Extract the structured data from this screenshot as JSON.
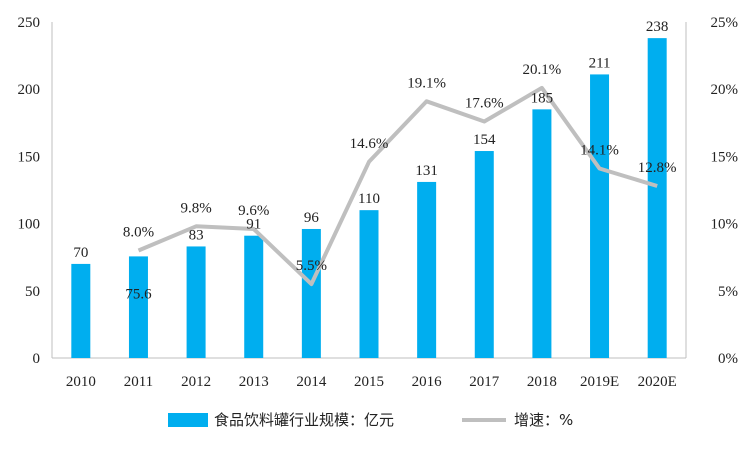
{
  "chart_data": {
    "type": "bar",
    "categories": [
      "2010",
      "2011",
      "2012",
      "2013",
      "2014",
      "2015",
      "2016",
      "2017",
      "2018",
      "2019E",
      "2020E"
    ],
    "series": [
      {
        "name": "食品饮料罐行业规模：亿元",
        "type": "bar",
        "axis": "left",
        "color": "#00AEEF",
        "values": [
          70,
          75.6,
          83,
          91,
          96,
          110,
          131,
          154,
          185,
          211,
          238
        ],
        "labels": [
          "70",
          "75.6",
          "83",
          "91",
          "96",
          "110",
          "131",
          "154",
          "185",
          "211",
          "238"
        ]
      },
      {
        "name": "增速：%",
        "type": "line",
        "axis": "right",
        "color": "#BFBFBF",
        "values": [
          null,
          8.0,
          9.8,
          9.6,
          5.5,
          14.6,
          19.1,
          17.6,
          20.1,
          14.1,
          12.8
        ],
        "labels": [
          null,
          "8.0%",
          "9.8%",
          "9.6%",
          "5.5%",
          "14.6%",
          "19.1%",
          "17.6%",
          "20.1%",
          "14.1%",
          "12.8%"
        ]
      }
    ],
    "y_left": {
      "min": 0,
      "max": 250,
      "ticks": [
        "0",
        "50",
        "100",
        "150",
        "200",
        "250"
      ]
    },
    "y_right": {
      "min": 0,
      "max": 25,
      "ticks": [
        "0%",
        "5%",
        "10%",
        "15%",
        "20%",
        "25%"
      ]
    },
    "grid": false,
    "legend_position": "bottom"
  }
}
